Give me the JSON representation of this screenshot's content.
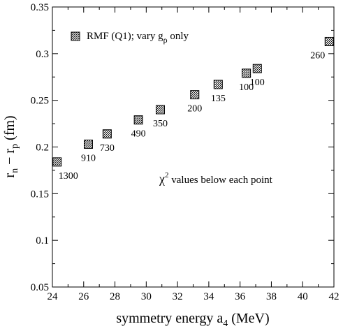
{
  "chart_data": {
    "type": "scatter",
    "xlabel": {
      "main": "symmetry energy a",
      "sub": "4",
      "unit": " (MeV)"
    },
    "ylabel": {
      "r1": "r",
      "r1_sub": "n",
      "minus": " − r",
      "r2_sub": "p",
      "unit": " (fm)"
    },
    "xlim": [
      24,
      42
    ],
    "ylim": [
      0.05,
      0.35
    ],
    "x_ticks": [
      24,
      26,
      28,
      30,
      32,
      34,
      36,
      38,
      40,
      42
    ],
    "x_tick_labels": [
      "24",
      "26",
      "28",
      "30",
      "32",
      "34",
      "36",
      "38",
      "40",
      "42"
    ],
    "y_ticks": [
      0.05,
      0.1,
      0.15,
      0.2,
      0.25,
      0.3,
      0.35
    ],
    "y_tick_labels": [
      "0.05",
      "0.1",
      "0.15",
      "0.2",
      "0.25",
      "0.3",
      "0.35"
    ],
    "grid": false,
    "legend": {
      "position": "top-left",
      "label_main": "RMF (Q1);  vary g",
      "label_sub": "ρ",
      "label_tail": " only"
    },
    "annotation": {
      "chi": "χ",
      "sup": "2",
      "text": " values below each point"
    },
    "series": [
      {
        "marker": "hatched-square",
        "points": [
          {
            "x": 24.3,
            "y": 0.184,
            "label": "1300"
          },
          {
            "x": 26.3,
            "y": 0.203,
            "label": "910"
          },
          {
            "x": 27.5,
            "y": 0.214,
            "label": "730"
          },
          {
            "x": 29.5,
            "y": 0.229,
            "label": "490"
          },
          {
            "x": 30.9,
            "y": 0.24,
            "label": "350"
          },
          {
            "x": 33.1,
            "y": 0.256,
            "label": "200"
          },
          {
            "x": 34.6,
            "y": 0.267,
            "label": "135"
          },
          {
            "x": 36.4,
            "y": 0.279,
            "label": "100"
          },
          {
            "x": 37.1,
            "y": 0.284,
            "label": "100"
          },
          {
            "x": 41.7,
            "y": 0.313,
            "label": "260"
          }
        ]
      }
    ]
  }
}
